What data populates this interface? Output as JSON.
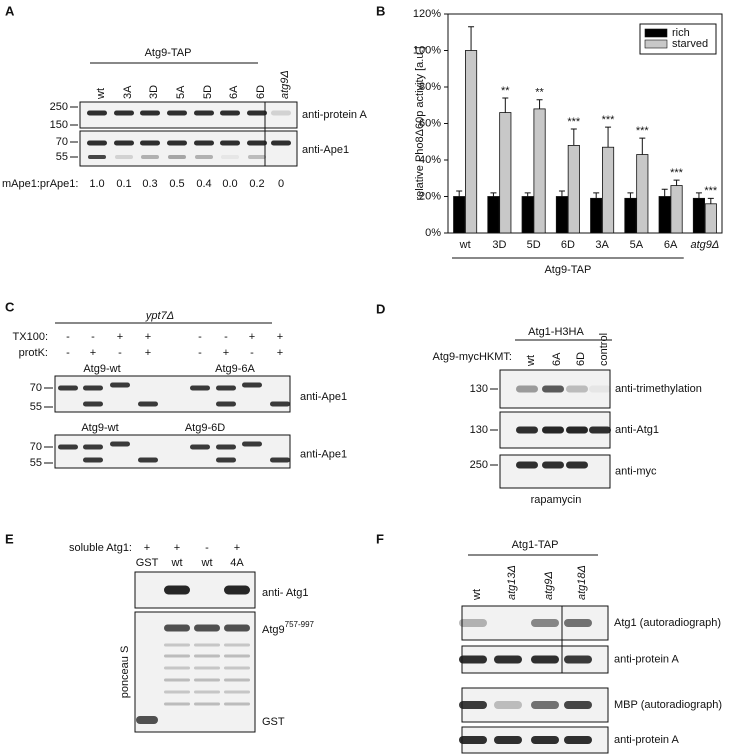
{
  "panel_labels": [
    "A",
    "B",
    "C",
    "D",
    "E",
    "F"
  ],
  "panel_a": {
    "construct": "Atg9-TAP",
    "lanes": [
      "wt",
      "3A",
      "3D",
      "5A",
      "5D",
      "6A",
      "6D",
      "atg9Δ"
    ],
    "markers": [
      "250",
      "150",
      "70",
      "55"
    ],
    "antibodies": [
      "anti-protein A",
      "anti-Ape1"
    ],
    "ratio_label": "mApe1:prApe1:",
    "ratios": [
      "1.0",
      "0.1",
      "0.3",
      "0.5",
      "0.4",
      "0.0",
      "0.2",
      "0"
    ]
  },
  "chart_data": {
    "type": "bar",
    "ylabel": "relative Pho8Δ60p activity [a.u.]",
    "xlabel": "Atg9-TAP",
    "categories": [
      "wt",
      "3D",
      "5D",
      "6D",
      "3A",
      "5A",
      "6A",
      "atg9Δ"
    ],
    "series": [
      {
        "name": "rich",
        "color": "#000000",
        "values": [
          20,
          20,
          20,
          20,
          19,
          19,
          20,
          19
        ],
        "errors": [
          3,
          2,
          2,
          3,
          3,
          3,
          4,
          3
        ]
      },
      {
        "name": "starved",
        "color": "#c8c8c8",
        "values": [
          100,
          66,
          68,
          48,
          47,
          43,
          26,
          16
        ],
        "errors": [
          13,
          8,
          5,
          9,
          11,
          9,
          3,
          3
        ],
        "significance": [
          null,
          "**",
          "**",
          "***",
          "***",
          "***",
          "***",
          "***"
        ]
      }
    ],
    "ylim": [
      0,
      120
    ],
    "yticks": [
      {
        "value": 0,
        "label": "0%"
      },
      {
        "value": 20,
        "label": "20%"
      },
      {
        "value": 40,
        "label": "40%"
      },
      {
        "value": 60,
        "label": "60%"
      },
      {
        "value": 80,
        "label": "80%"
      },
      {
        "value": 100,
        "label": "100%"
      },
      {
        "value": 120,
        "label": "120%"
      }
    ],
    "grid": false,
    "legend": "top-right"
  },
  "panel_c": {
    "strain": "ypt7Δ",
    "rows": [
      "TX100:",
      "protK:"
    ],
    "tx100": [
      "-",
      "-",
      "+",
      "+",
      "-",
      "-",
      "+",
      "+"
    ],
    "protk": [
      "-",
      "+",
      "-",
      "+",
      "-",
      "+",
      "-",
      "+"
    ],
    "blots": [
      {
        "left": "Atg9-wt",
        "right": "Atg9-6A",
        "markers": [
          "70",
          "55"
        ],
        "antibody": "anti-Ape1"
      },
      {
        "left": "Atg9-wt",
        "right": "Atg9-6D",
        "markers": [
          "70",
          "55"
        ],
        "antibody": "anti-Ape1"
      }
    ]
  },
  "panel_d": {
    "construct": "Atg1-H3HA",
    "row_label": "Atg9-mycHKMT:",
    "lanes": [
      "wt",
      "6A",
      "6D",
      "control"
    ],
    "blots": [
      {
        "marker": "130",
        "antibody": "anti-trimethylation"
      },
      {
        "marker": "130",
        "antibody": "anti-Atg1"
      },
      {
        "marker": "250",
        "antibody": "anti-myc"
      }
    ],
    "condition": "rapamycin"
  },
  "panel_e": {
    "row_label": "soluble Atg1:",
    "signs": [
      "+",
      "+",
      "-",
      "+"
    ],
    "lanes": [
      "GST",
      "wt",
      "wt",
      "4A"
    ],
    "antibody": "anti- Atg1",
    "stain": "ponceau S",
    "band_top": "Atg9",
    "band_top_sup": "757-997",
    "band_bottom": "GST"
  },
  "panel_f": {
    "construct": "Atg1-TAP",
    "lanes": [
      "wt",
      "atg13Δ",
      "atg9Δ",
      "atg18Δ"
    ],
    "blots": [
      "Atg1 (autoradiograph)",
      "anti-protein A",
      "MBP (autoradiograph)",
      "anti-protein A"
    ]
  }
}
